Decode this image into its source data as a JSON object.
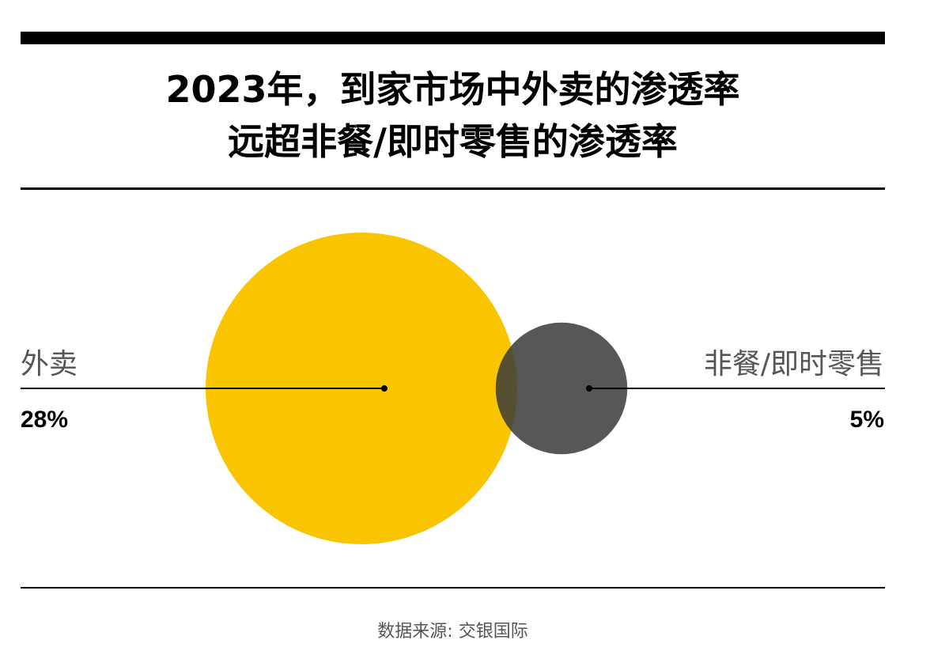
{
  "title_line1": "2023年，到家市场中外卖的渗透率",
  "title_line2": "远超非餐/即时零售的渗透率",
  "source": "数据来源: 交银国际",
  "colors": {
    "food_delivery": "#F9C500",
    "non_food": "#3a3a3a",
    "text_muted": "#555555"
  },
  "chart_data": {
    "type": "bubble",
    "series": [
      {
        "name": "外卖",
        "value": 28,
        "label": "28%"
      },
      {
        "name": "非餐/即时零售",
        "value": 5,
        "label": "5%"
      }
    ]
  }
}
